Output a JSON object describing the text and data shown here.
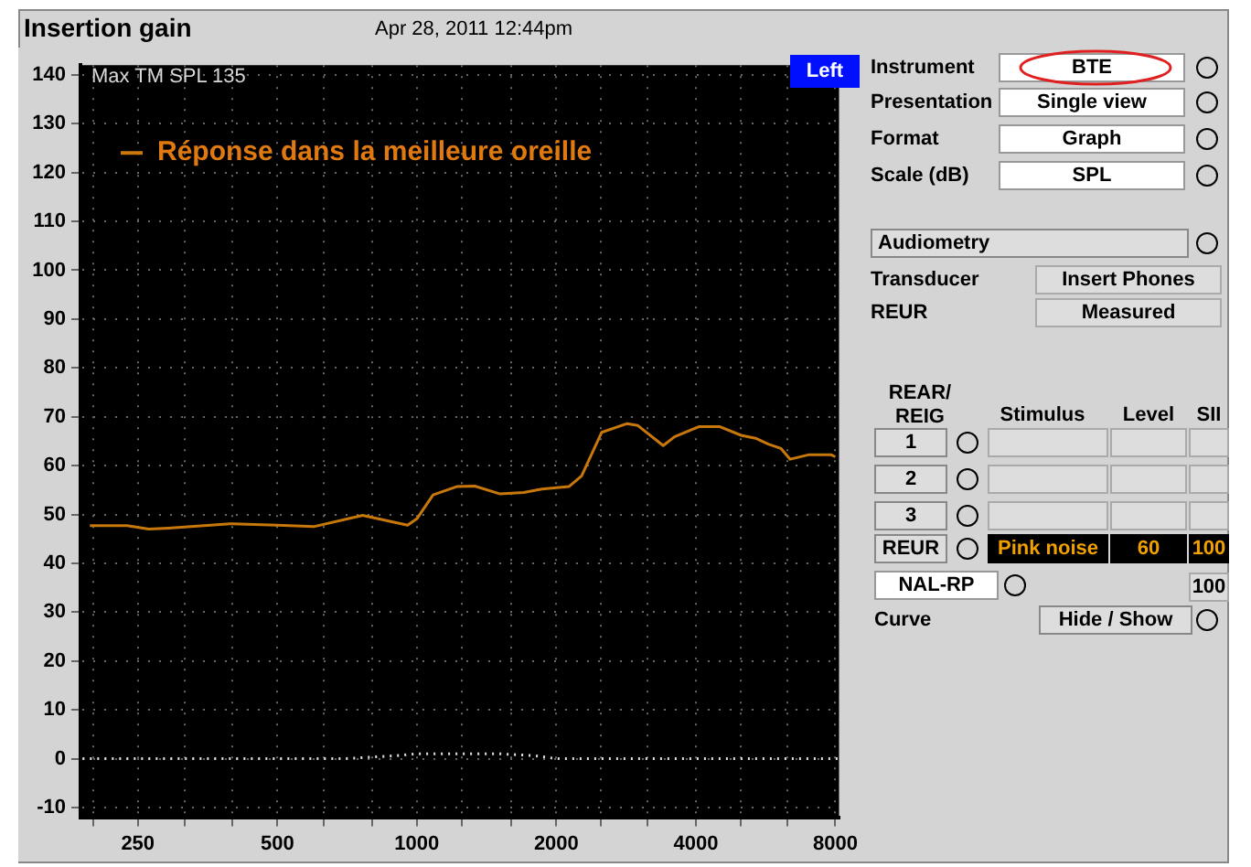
{
  "chart_data": {
    "type": "line",
    "title": "Insertion gain",
    "subtitle": "Apr 28, 2011 12:44pm",
    "log": "x",
    "xlim": [
      188,
      8150
    ],
    "xticks": [
      {
        "value": 200,
        "label": null
      },
      250,
      {
        "value": 315,
        "label": null
      },
      {
        "value": 400,
        "label": null
      },
      500,
      {
        "value": 630,
        "label": null
      },
      {
        "value": 800,
        "label": null
      },
      1000,
      {
        "value": 1250,
        "label": null
      },
      {
        "value": 1600,
        "label": null
      },
      2000,
      {
        "value": 2500,
        "label": null
      },
      {
        "value": 3150,
        "label": null
      },
      4000,
      {
        "value": 5000,
        "label": null
      },
      {
        "value": 6300,
        "label": null
      },
      8000
    ],
    "ylim": [
      -12,
      142
    ],
    "yticks": [
      -10,
      0,
      10,
      20,
      30,
      40,
      50,
      60,
      70,
      80,
      90,
      100,
      110,
      120,
      130,
      140
    ],
    "grid": true,
    "legend": "top left",
    "series": [
      {
        "name": "Réponse dans la meilleure oreille",
        "color": "#c8780a",
        "line_style": "solid",
        "x": [
          197,
          237,
          264,
          291,
          395,
          500,
          599,
          764,
          955,
          1000,
          1084,
          1219,
          1334,
          1513,
          1701,
          1862,
          2129,
          2268,
          2505,
          2844,
          3000,
          3402,
          3597,
          4072,
          4498,
          5011,
          5384,
          5735,
          6110,
          6393,
          6993,
          7843,
          8000
        ],
        "values": [
          47.7,
          47.7,
          47.0,
          47.2,
          48.1,
          47.8,
          47.5,
          49.8,
          47.8,
          49.1,
          54.0,
          55.7,
          55.8,
          54.2,
          54.5,
          55.2,
          55.7,
          57.9,
          66.8,
          68.6,
          68.2,
          64.1,
          65.9,
          68.0,
          68.0,
          66.2,
          65.6,
          64.4,
          63.5,
          61.3,
          62.2,
          62.2,
          61.8
        ]
      },
      {
        "color": "#e0e0e0",
        "line_style": "dotted",
        "x": [
          190,
          700,
          900,
          1000,
          1500,
          1800,
          2000,
          8100
        ],
        "values": [
          0,
          0,
          0.6,
          1,
          1,
          0.6,
          0,
          0
        ]
      }
    ],
    "annotations": [
      "Max TM SPL 135",
      "Left",
      "Instrument",
      "BTE",
      "Presentation",
      "Single view",
      "Format",
      "Graph",
      "Scale (dB)",
      "SPL",
      "Audiometry",
      "Transducer",
      "Insert Phones",
      "REUR",
      "Measured",
      "REAR/ REIG",
      "Stimulus",
      "Level",
      "SII",
      "1",
      "2",
      "3",
      "REUR",
      "Pink noise",
      "60",
      "100",
      "NAL-RP",
      "100",
      "Curve",
      "Hide / Show"
    ]
  }
}
